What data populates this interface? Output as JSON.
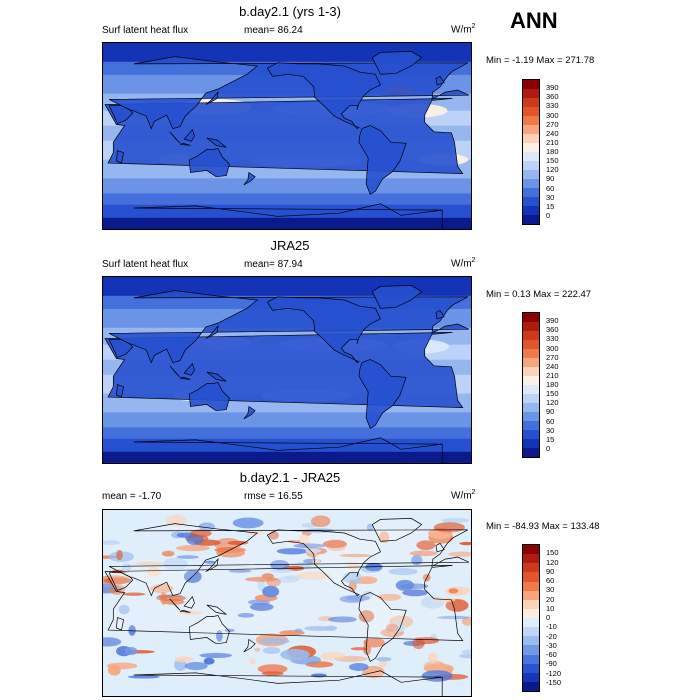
{
  "season": "ANN",
  "panels": [
    {
      "title": "b.day2.1 (yrs 1-3)",
      "left_label": "Surf latent heat flux",
      "stat_label": "mean=  86.24",
      "units": "W/m",
      "units_sup": "2",
      "minmax": "Min =  -1.19 Max = 271.78",
      "levels": [
        "390",
        "360",
        "330",
        "300",
        "270",
        "240",
        "210",
        "180",
        "150",
        "120",
        "90",
        "60",
        "30",
        "15",
        "0"
      ]
    },
    {
      "title": "JRA25",
      "left_label": "Surf latent heat flux",
      "stat_label": "mean=  87.94",
      "units": "W/m",
      "units_sup": "2",
      "minmax": "Min =   0.13 Max = 222.47",
      "levels": [
        "390",
        "360",
        "330",
        "300",
        "270",
        "240",
        "210",
        "180",
        "150",
        "120",
        "90",
        "60",
        "30",
        "15",
        "0"
      ]
    },
    {
      "title": "b.day2.1 - JRA25",
      "left_label": "mean =  -1.70",
      "stat_label": "rmse =  16.55",
      "units": "W/m",
      "units_sup": "2",
      "minmax": "Min = -84.93 Max = 133.48",
      "levels": [
        "150",
        "120",
        "90",
        "60",
        "30",
        "20",
        "10",
        "0",
        "-10",
        "-20",
        "-30",
        "-60",
        "-90",
        "-120",
        "-150"
      ]
    }
  ],
  "colors": {
    "flux_scale": [
      "#8b0000",
      "#b01b10",
      "#cc3a1a",
      "#e0562a",
      "#ee7a48",
      "#f7a57c",
      "#fcd3b8",
      "#fbf0e6",
      "#dce9fb",
      "#bcd2f6",
      "#96b6ef",
      "#6c94e6",
      "#4470dc",
      "#2650cf",
      "#1434b8",
      "#0a1a8c"
    ],
    "diff_scale": [
      "#8b0000",
      "#b01b10",
      "#cc3a1a",
      "#e0562a",
      "#ee7a48",
      "#f7a57c",
      "#fcd3b8",
      "#fdeee2",
      "#dfeefb",
      "#bfd6f6",
      "#9bbcf0",
      "#7299e6",
      "#4a75dc",
      "#2a53cf",
      "#1636b8",
      "#0a1a8c"
    ],
    "land_line": "#000000"
  }
}
